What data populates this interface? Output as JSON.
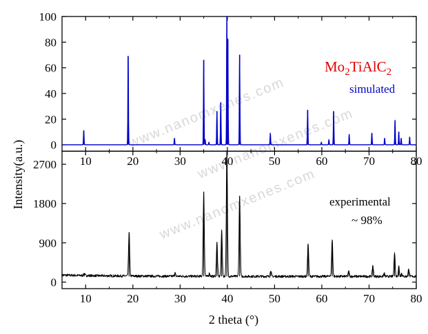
{
  "chart_data": [
    {
      "type": "line",
      "panel": "simulated",
      "xlabel": "2 theta (°)",
      "ylabel": "Intensity(a.u.)",
      "xlim": [
        5,
        80
      ],
      "ylim": [
        -5,
        100
      ],
      "x_ticks": [
        10,
        20,
        30,
        40,
        50,
        60,
        70,
        80
      ],
      "y_ticks": [
        0,
        20,
        40,
        60,
        80,
        100
      ],
      "color": "#0000c8",
      "annotations": {
        "formula_main": "Mo",
        "formula_sub1": "2",
        "formula_mid": "TiAlC",
        "formula_sub2": "2",
        "formula_color": "#e00000",
        "label": "simulated",
        "label_color": "#0000c8"
      },
      "peaks": [
        {
          "x": 9.6,
          "y": 11
        },
        {
          "x": 19.0,
          "y": 69
        },
        {
          "x": 28.8,
          "y": 5
        },
        {
          "x": 35.0,
          "y": 66
        },
        {
          "x": 35.3,
          "y": 4
        },
        {
          "x": 36.1,
          "y": 2
        },
        {
          "x": 37.8,
          "y": 26
        },
        {
          "x": 38.6,
          "y": 33
        },
        {
          "x": 39.9,
          "y": 100
        },
        {
          "x": 40.1,
          "y": 82
        },
        {
          "x": 42.6,
          "y": 70
        },
        {
          "x": 49.1,
          "y": 9
        },
        {
          "x": 57.0,
          "y": 27
        },
        {
          "x": 59.9,
          "y": 2
        },
        {
          "x": 61.5,
          "y": 4
        },
        {
          "x": 62.5,
          "y": 26
        },
        {
          "x": 65.8,
          "y": 8
        },
        {
          "x": 70.6,
          "y": 9
        },
        {
          "x": 73.3,
          "y": 5
        },
        {
          "x": 75.5,
          "y": 19
        },
        {
          "x": 76.3,
          "y": 10
        },
        {
          "x": 76.8,
          "y": 5
        },
        {
          "x": 78.6,
          "y": 6
        }
      ]
    },
    {
      "type": "line",
      "panel": "experimental",
      "xlabel": "2 theta (°)",
      "ylabel": "Intensity(a.u.)",
      "xlim": [
        5,
        80
      ],
      "ylim": [
        -150,
        3000
      ],
      "x_ticks": [
        10,
        20,
        30,
        40,
        50,
        60,
        70,
        80
      ],
      "y_ticks": [
        0,
        900,
        1800,
        2700
      ],
      "color": "#000000",
      "annotations": {
        "label": "experimental",
        "purity": "~ 98%"
      },
      "baseline": 130,
      "peaks": [
        {
          "x": 9.7,
          "y": 180
        },
        {
          "x": 19.2,
          "y": 1140
        },
        {
          "x": 28.9,
          "y": 210
        },
        {
          "x": 35.0,
          "y": 2060
        },
        {
          "x": 36.2,
          "y": 200
        },
        {
          "x": 37.8,
          "y": 900
        },
        {
          "x": 38.8,
          "y": 1200
        },
        {
          "x": 39.9,
          "y": 3000
        },
        {
          "x": 42.6,
          "y": 1980
        },
        {
          "x": 49.2,
          "y": 260
        },
        {
          "x": 57.1,
          "y": 880
        },
        {
          "x": 61.6,
          "y": 150
        },
        {
          "x": 62.2,
          "y": 970
        },
        {
          "x": 65.7,
          "y": 250
        },
        {
          "x": 70.8,
          "y": 380
        },
        {
          "x": 73.2,
          "y": 200
        },
        {
          "x": 75.4,
          "y": 680
        },
        {
          "x": 76.3,
          "y": 360
        },
        {
          "x": 76.9,
          "y": 200
        },
        {
          "x": 78.4,
          "y": 300
        }
      ]
    }
  ],
  "watermark": "www.nanomxenes.com"
}
